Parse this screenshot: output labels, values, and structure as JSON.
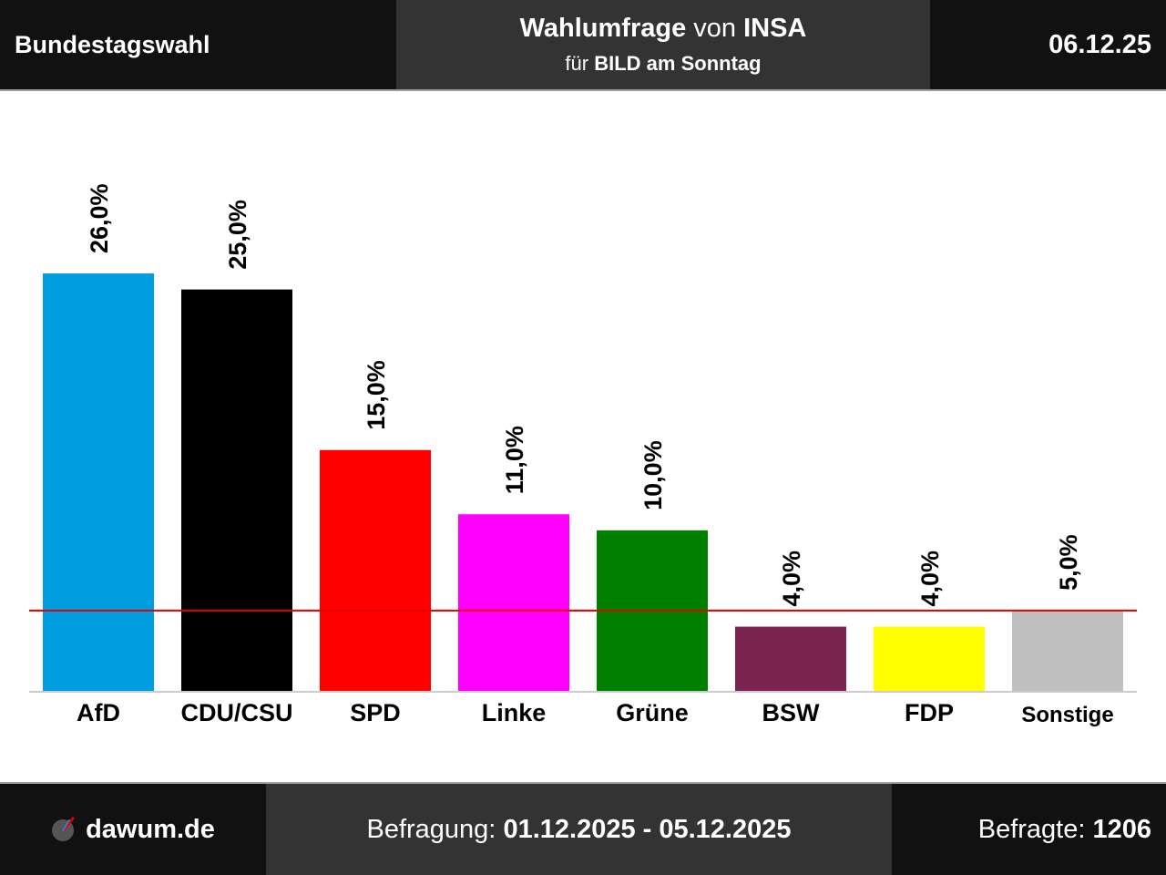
{
  "header": {
    "left": "Bundestagswahl",
    "title_bold": "Wahlumfrage",
    "title_mid": "von",
    "title_institute": "INSA",
    "subtitle_prefix": "für",
    "subtitle_client": "BILD am Sonntag",
    "date": "06.12.25"
  },
  "footer": {
    "site": "dawum.de",
    "period_label": "Befragung:",
    "period_value": "01.12.2025 - 05.12.2025",
    "respondents_label": "Befragte:",
    "respondents_value": "1206"
  },
  "colors": {
    "header_bg": "#111111",
    "header_center_bg": "#333333",
    "threshold_line": "#e00000",
    "baseline": "#cccccc"
  },
  "chart_data": {
    "type": "bar",
    "categories": [
      "AfD",
      "CDU/CSU",
      "SPD",
      "Linke",
      "Grüne",
      "BSW",
      "FDP",
      "Sonstige"
    ],
    "values": [
      26.0,
      25.0,
      15.0,
      11.0,
      10.0,
      4.0,
      4.0,
      5.0
    ],
    "value_labels": [
      "26,0%",
      "25,0%",
      "15,0%",
      "11,0%",
      "10,0%",
      "4,0%",
      "4,0%",
      "5,0%"
    ],
    "colors": [
      "#009ee0",
      "#000000",
      "#ff0000",
      "#ff00ff",
      "#008000",
      "#7b2450",
      "#ffff00",
      "#c0c0c0"
    ],
    "threshold": 5.0,
    "ylim": [
      0,
      26
    ],
    "title": "",
    "xlabel": "",
    "ylabel": "",
    "grid": false
  }
}
